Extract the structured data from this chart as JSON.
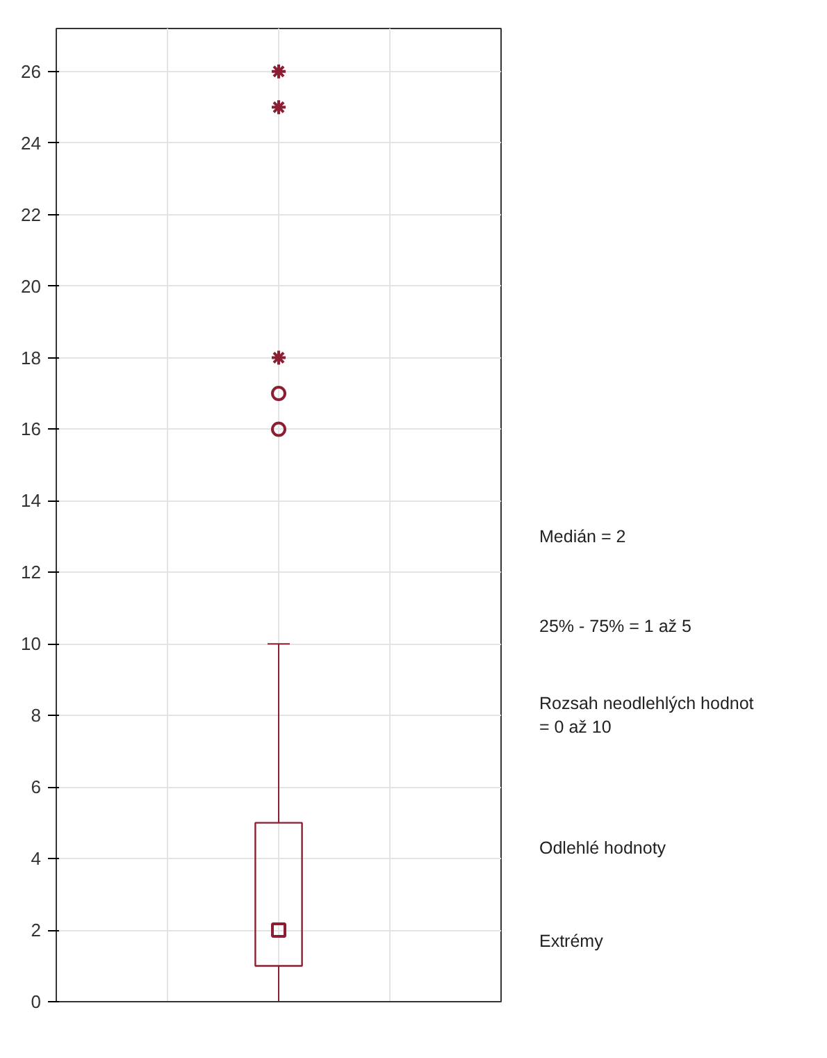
{
  "chart_data": {
    "type": "box",
    "categories": [
      null
    ],
    "boxes": [
      {
        "low": 0,
        "q1": 1,
        "median": 2,
        "q3": 5,
        "high": 10,
        "outliers": [
          16,
          17
        ]
      }
    ],
    "series": [
      {
        "type": "scatter",
        "marker": "cross",
        "color": "#8b1e32",
        "x": [
          null,
          null,
          null
        ],
        "values": [
          18,
          25,
          26
        ]
      }
    ],
    "color": "#8b1e32",
    "ylim": [
      0,
      27.2
    ],
    "yticks": [
      0,
      2,
      4,
      6,
      8,
      10,
      12,
      14,
      16,
      18,
      20,
      22,
      24,
      26
    ],
    "grid": true,
    "annotations": [
      "Medián = 2",
      "25% - 75% = 1 až 5",
      "Rozsah neodlehlých hodnot\n      = 0 až 10",
      "Odlehlé hodnoty",
      "Extrémy"
    ]
  }
}
